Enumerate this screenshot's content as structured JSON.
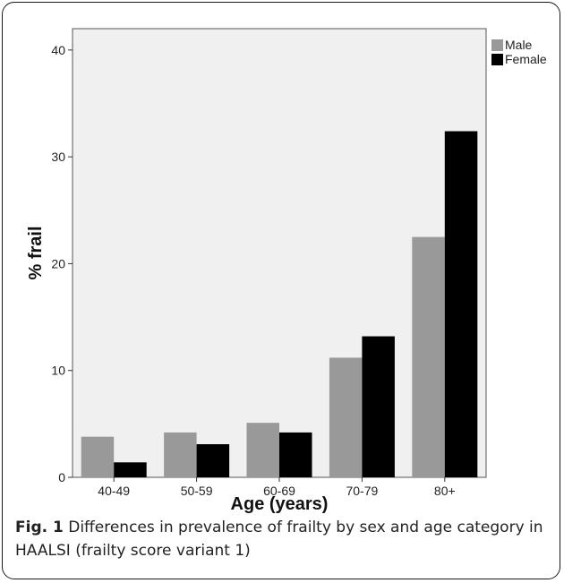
{
  "figure": {
    "label": "Fig. 1",
    "caption": "Differences in prevalence of frailty by sex and age category in HAALSI (frailty score variant 1)"
  },
  "colors": {
    "plot_bg": "#f0f0f0",
    "male": "#999999",
    "female": "#000000"
  },
  "chart_data": {
    "type": "bar",
    "xlabel": "Age (years)",
    "ylabel": "% frail",
    "categories": [
      "40-49",
      "50-59",
      "60-69",
      "70-79",
      "80+"
    ],
    "series": [
      {
        "name": "Male",
        "values": [
          3.8,
          4.2,
          5.1,
          11.2,
          22.5
        ]
      },
      {
        "name": "Female",
        "values": [
          1.4,
          3.1,
          4.2,
          13.2,
          32.4
        ]
      }
    ],
    "yticks": [
      0,
      10,
      20,
      30,
      40
    ],
    "ylim": [
      0,
      42
    ],
    "grid": false,
    "legend": "top-right"
  }
}
